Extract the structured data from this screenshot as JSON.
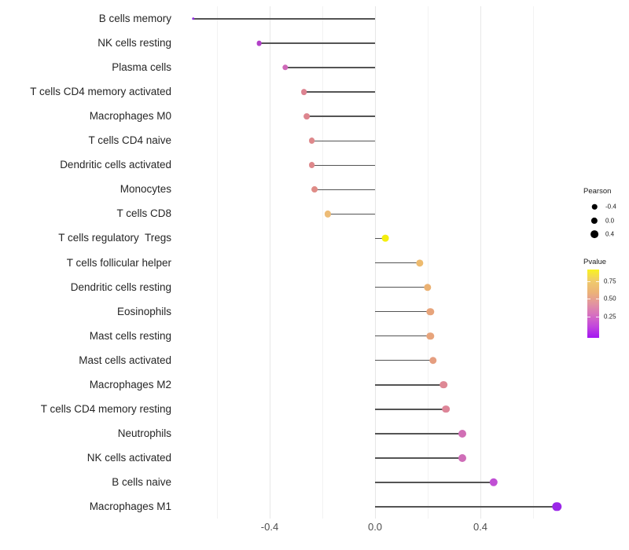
{
  "chart_data": {
    "type": "lollipop",
    "orientation": "horizontal",
    "title": "",
    "xlabel": "",
    "ylabel": "",
    "xlim": [
      -0.72,
      0.74
    ],
    "grid": "vertical-only",
    "x_axis": {
      "major_ticks": [
        {
          "value": -0.4,
          "label": "-0.4"
        },
        {
          "value": 0.0,
          "label": "0.0"
        },
        {
          "value": 0.4,
          "label": "0.4"
        }
      ],
      "major_gridlines": [
        -0.4,
        0.0,
        0.4
      ],
      "minor_gridlines": [
        -0.6,
        -0.2,
        0.2,
        0.6
      ]
    },
    "points": [
      {
        "label": "B cells memory",
        "pearson": -0.69,
        "pvalue_approx": 0.08,
        "color": "#8f2be0",
        "diameter": 3.4
      },
      {
        "label": "NK cells resting",
        "pearson": -0.44,
        "pvalue_approx": 0.18,
        "color": "#b240c8",
        "diameter": 6.8
      },
      {
        "label": "Plasma cells",
        "pearson": -0.34,
        "pvalue_approx": 0.33,
        "color": "#ce68b8",
        "diameter": 7.4
      },
      {
        "label": "T cells CD4 memory activated",
        "pearson": -0.27,
        "pvalue_approx": 0.47,
        "color": "#dd8391",
        "diameter": 7.8
      },
      {
        "label": "Macrophages M0",
        "pearson": -0.26,
        "pvalue_approx": 0.47,
        "color": "#dd858e",
        "diameter": 7.8
      },
      {
        "label": "T cells CD4 naive",
        "pearson": -0.24,
        "pvalue_approx": 0.48,
        "color": "#de888b",
        "diameter": 7.9
      },
      {
        "label": "Dendritic cells activated",
        "pearson": -0.24,
        "pvalue_approx": 0.48,
        "color": "#de888b",
        "diameter": 7.9
      },
      {
        "label": "Monocytes",
        "pearson": -0.23,
        "pvalue_approx": 0.5,
        "color": "#df8c87",
        "diameter": 7.9
      },
      {
        "label": "T cells CD8",
        "pearson": -0.18,
        "pvalue_approx": 0.68,
        "color": "#edbc77",
        "diameter": 8.2
      },
      {
        "label": "T cells regulatory  Tregs",
        "pearson": 0.04,
        "pvalue_approx": 0.88,
        "color": "#f4ee0d",
        "diameter": 8.8
      },
      {
        "label": "T cells follicular helper",
        "pearson": 0.17,
        "pvalue_approx": 0.67,
        "color": "#eebb6e",
        "diameter": 9.3
      },
      {
        "label": "Dendritic cells resting",
        "pearson": 0.2,
        "pvalue_approx": 0.63,
        "color": "#ebb172",
        "diameter": 9.4
      },
      {
        "label": "Eosinophils",
        "pearson": 0.21,
        "pvalue_approx": 0.57,
        "color": "#e7a47b",
        "diameter": 9.4
      },
      {
        "label": "Mast cells resting",
        "pearson": 0.21,
        "pvalue_approx": 0.57,
        "color": "#e7a47b",
        "diameter": 9.4
      },
      {
        "label": "Mast cells activated",
        "pearson": 0.22,
        "pvalue_approx": 0.54,
        "color": "#e59e80",
        "diameter": 9.5
      },
      {
        "label": "Macrophages M2",
        "pearson": 0.26,
        "pvalue_approx": 0.46,
        "color": "#de8895",
        "diameter": 9.7
      },
      {
        "label": "T cells CD4 memory resting",
        "pearson": 0.27,
        "pvalue_approx": 0.45,
        "color": "#dd8598",
        "diameter": 9.7
      },
      {
        "label": "Neutrophils",
        "pearson": 0.33,
        "pvalue_approx": 0.3,
        "color": "#d16fb5",
        "diameter": 10.0
      },
      {
        "label": "NK cells activated",
        "pearson": 0.33,
        "pvalue_approx": 0.29,
        "color": "#cf6db8",
        "diameter": 10.0
      },
      {
        "label": "B cells naive",
        "pearson": 0.45,
        "pvalue_approx": 0.16,
        "color": "#c04fd4",
        "diameter": 10.4
      },
      {
        "label": "Macrophages M1",
        "pearson": 0.69,
        "pvalue_approx": 0.07,
        "color": "#9b27e8",
        "diameter": 11.4
      }
    ],
    "legend": {
      "position": "right",
      "size": {
        "title": "Pearson",
        "dot_color": "#000000",
        "entries": [
          {
            "label": "-0.4",
            "diameter": 6.5
          },
          {
            "label": "0.0",
            "diameter": 8.2
          },
          {
            "label": "0.4",
            "diameter": 9.8
          }
        ]
      },
      "color": {
        "title": "Pvalue",
        "tick_labels": [
          "0.75",
          "0.50",
          "0.25"
        ],
        "gradient_top_to_bottom": [
          "#f9f320",
          "#f0cb6b",
          "#ecb377",
          "#e294a0",
          "#d66fc0",
          "#c246dd",
          "#a315f2"
        ]
      }
    }
  },
  "colors": {
    "background": "#ffffff",
    "stem": "#545454",
    "grid_major": "#e7e7e7",
    "grid_minor": "#f2f2f2",
    "axis_text": "#4d4d4d",
    "label_text": "#262626",
    "legend_text": "#1a1a1a"
  }
}
